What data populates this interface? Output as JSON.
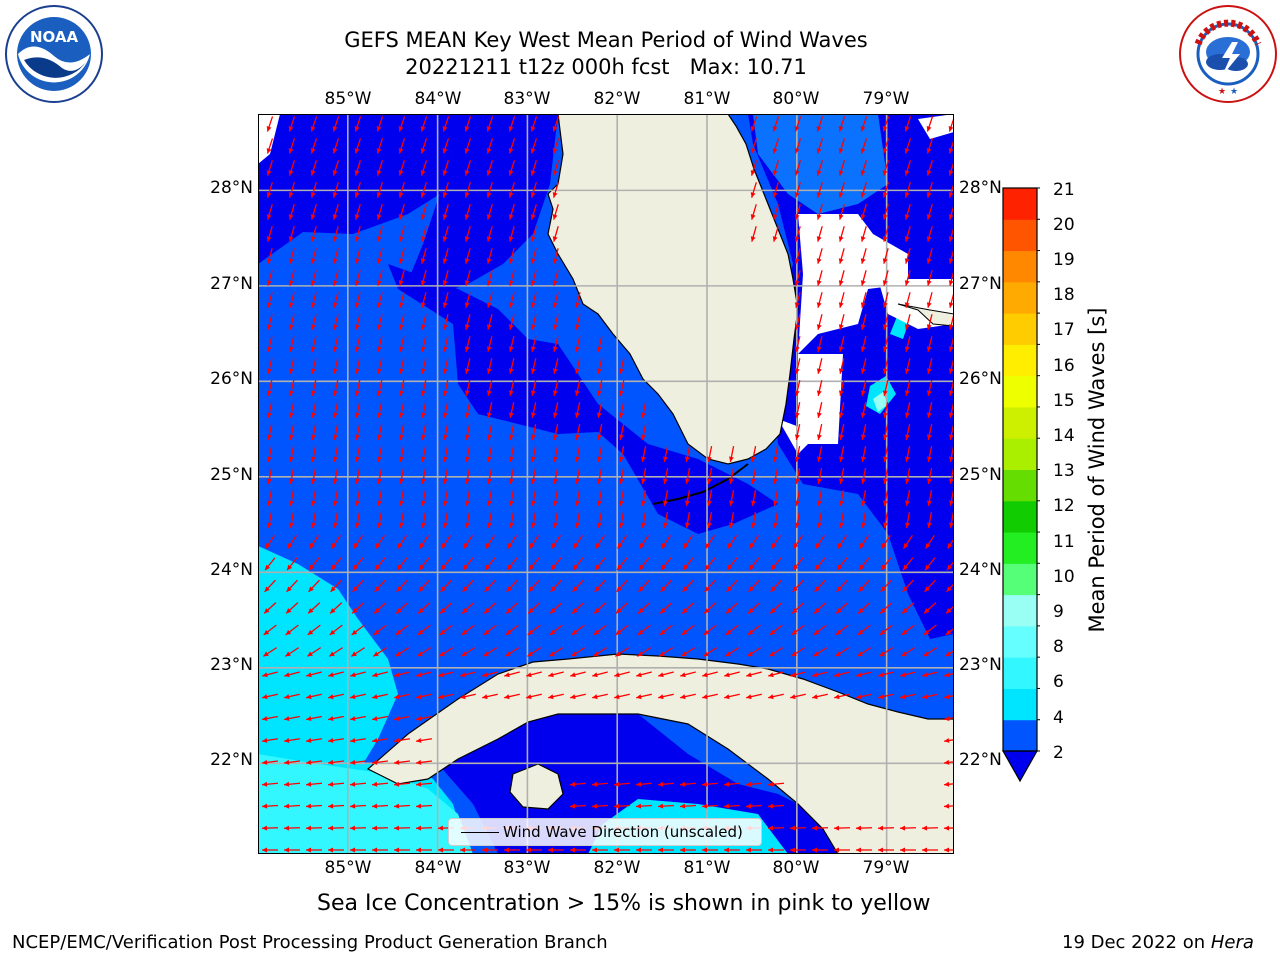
{
  "title": {
    "line1": "GEFS MEAN Key West Mean Period of Wind Waves",
    "line2": "20221211 t12z 000h fcst   Max: 10.71"
  },
  "map": {
    "lon_ticks": [
      "85°W",
      "84°W",
      "83°W",
      "82°W",
      "81°W",
      "80°W",
      "79°W"
    ],
    "lat_ticks": [
      "28°N",
      "27°N",
      "26°N",
      "25°N",
      "24°N",
      "23°N",
      "22°N"
    ],
    "lon_range": [
      -86.0,
      -78.25
    ],
    "lat_range": [
      21.05,
      28.8
    ],
    "legend_label": "Wind Wave Direction (unscaled)",
    "arrow_color": "#ff0000"
  },
  "colorbar": {
    "label": "Mean Period of Wind Waves [s]",
    "ticks": [
      "21",
      "20",
      "19",
      "18",
      "17",
      "16",
      "15",
      "14",
      "13",
      "12",
      "11",
      "10",
      "9",
      "8",
      "6",
      "4",
      "2"
    ],
    "levels": [
      2,
      4,
      6,
      7,
      8,
      9,
      10,
      11,
      12,
      13,
      14,
      15,
      16,
      17,
      18,
      19,
      20,
      21
    ],
    "colors": [
      "#0055ff",
      "#00e5ff",
      "#33f7ff",
      "#66ffff",
      "#99fff5",
      "#55ff77",
      "#22ee22",
      "#11cc00",
      "#66dd00",
      "#aaee00",
      "#ccf000",
      "#eeff00",
      "#ffee00",
      "#ffcc00",
      "#ffaa00",
      "#ff8800",
      "#ff5500",
      "#ff2200"
    ],
    "under_color": "#0000ee"
  },
  "logos": {
    "left_text": "NOAA",
    "right_text": "NATIONAL WEATHER SERVICE"
  },
  "caption": "Sea Ice Concentration > 15% is shown in pink to yellow",
  "footer": {
    "left": "NCEP/EMC/Verification Post Processing Product Generation Branch",
    "right_prefix": "19 Dec 2022 on ",
    "right_host": "Hera"
  }
}
